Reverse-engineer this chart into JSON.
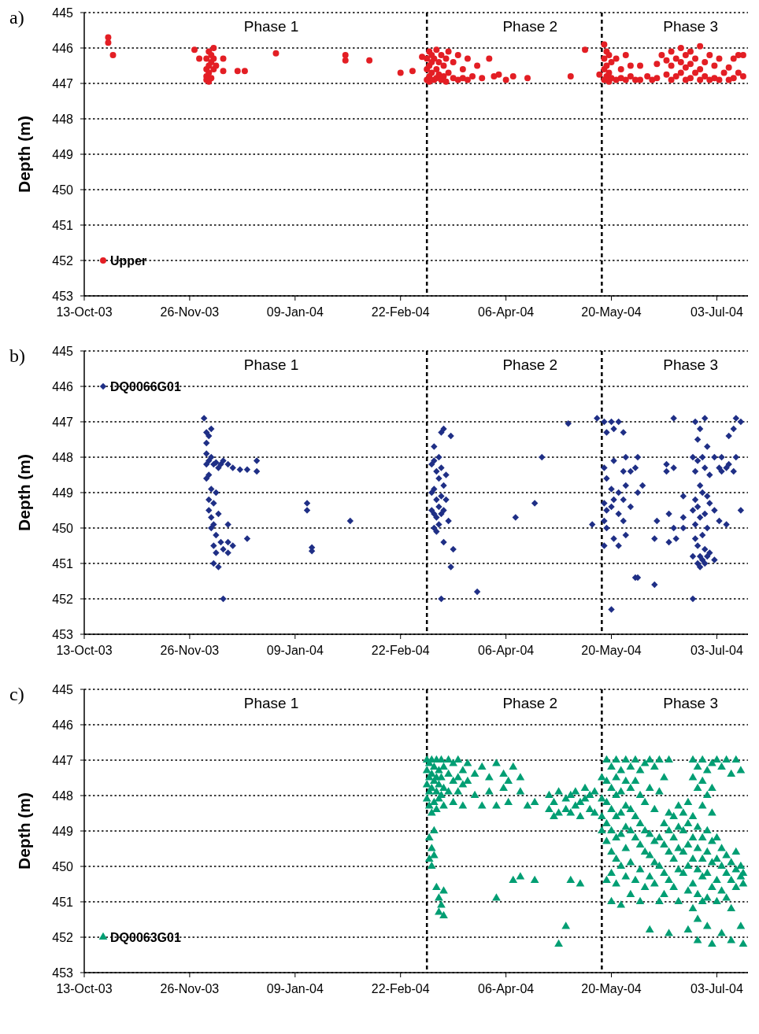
{
  "chart_data": [
    {
      "type": "scatter",
      "title": "a)",
      "ylabel": "Depth (m)",
      "ylim": [
        453,
        445
      ],
      "yticks": [
        445,
        446,
        447,
        448,
        449,
        450,
        451,
        452,
        453
      ],
      "xlim": [
        "2003-10-13",
        "2004-07-16"
      ],
      "xticks": [
        {
          "value": "2003-10-13",
          "label": "13-Oct-03"
        },
        {
          "value": "2003-11-26",
          "label": "26-Nov-03"
        },
        {
          "value": "2004-01-09",
          "label": "09-Jan-04"
        },
        {
          "value": "2004-02-22",
          "label": "22-Feb-04"
        },
        {
          "value": "2004-04-06",
          "label": "06-Apr-04"
        },
        {
          "value": "2004-05-20",
          "label": "20-May-04"
        },
        {
          "value": "2004-07-03",
          "label": "03-Jul-04"
        }
      ],
      "grid": "y",
      "legend": "bottom left",
      "marker": "circle",
      "ref_lines": [
        {
          "axis": "x",
          "value": "2004-03-04",
          "line_style": "dashed",
          "color": "#000000"
        },
        {
          "axis": "x",
          "value": "2004-05-16",
          "line_style": "dashed",
          "color": "#000000"
        }
      ],
      "annotations": [
        "Phase 1",
        "Phase 2",
        "Phase 3"
      ],
      "series": [
        {
          "name": "Upper",
          "color": "#e31e24",
          "x": [
            "2003-10-23",
            "2003-10-23",
            "2003-10-25",
            "2003-11-28",
            "2003-11-30",
            "2003-12-03",
            "2003-12-03",
            "2003-12-03",
            "2003-12-03",
            "2003-12-04",
            "2003-12-04",
            "2003-12-04",
            "2003-12-04",
            "2003-12-05",
            "2003-12-05",
            "2003-12-05",
            "2003-12-06",
            "2003-12-06",
            "2003-12-06",
            "2003-12-07",
            "2003-12-10",
            "2003-12-10",
            "2003-12-16",
            "2003-12-19",
            "2004-01-01",
            "2004-01-30",
            "2004-01-30",
            "2004-02-09",
            "2004-02-22",
            "2004-02-27",
            "2004-03-02",
            "2004-03-04",
            "2004-03-04",
            "2004-03-04",
            "2004-03-05",
            "2004-03-05",
            "2004-03-05",
            "2004-03-05",
            "2004-03-06",
            "2004-03-06",
            "2004-03-06",
            "2004-03-07",
            "2004-03-07",
            "2004-03-08",
            "2004-03-08",
            "2004-03-08",
            "2004-03-09",
            "2004-03-09",
            "2004-03-10",
            "2004-03-10",
            "2004-03-11",
            "2004-03-11",
            "2004-03-12",
            "2004-03-12",
            "2004-03-13",
            "2004-03-13",
            "2004-03-15",
            "2004-03-15",
            "2004-03-17",
            "2004-03-17",
            "2004-03-19",
            "2004-03-19",
            "2004-03-21",
            "2004-03-21",
            "2004-03-23",
            "2004-03-25",
            "2004-03-27",
            "2004-03-30",
            "2004-04-01",
            "2004-04-03",
            "2004-04-06",
            "2004-04-09",
            "2004-04-15",
            "2004-05-03",
            "2004-05-09",
            "2004-05-15",
            "2004-05-17",
            "2004-05-17",
            "2004-05-17",
            "2004-05-17",
            "2004-05-18",
            "2004-05-18",
            "2004-05-18",
            "2004-05-19",
            "2004-05-19",
            "2004-05-19",
            "2004-05-20",
            "2004-05-20",
            "2004-05-22",
            "2004-05-22",
            "2004-05-24",
            "2004-05-24",
            "2004-05-26",
            "2004-05-26",
            "2004-05-28",
            "2004-05-28",
            "2004-05-30",
            "2004-06-01",
            "2004-06-01",
            "2004-06-04",
            "2004-06-06",
            "2004-06-08",
            "2004-06-08",
            "2004-06-10",
            "2004-06-12",
            "2004-06-12",
            "2004-06-14",
            "2004-06-14",
            "2004-06-14",
            "2004-06-16",
            "2004-06-16",
            "2004-06-18",
            "2004-06-18",
            "2004-06-18",
            "2004-06-20",
            "2004-06-20",
            "2004-06-20",
            "2004-06-22",
            "2004-06-22",
            "2004-06-22",
            "2004-06-24",
            "2004-06-24",
            "2004-06-26",
            "2004-06-26",
            "2004-06-26",
            "2004-06-28",
            "2004-06-28",
            "2004-06-30",
            "2004-06-30",
            "2004-07-02",
            "2004-07-02",
            "2004-07-04",
            "2004-07-04",
            "2004-07-06",
            "2004-07-08",
            "2004-07-08",
            "2004-07-10",
            "2004-07-10",
            "2004-07-12",
            "2004-07-12",
            "2004-07-14",
            "2004-07-14"
          ],
          "values": [
            445.7,
            445.85,
            446.2,
            446.05,
            446.3,
            446.3,
            446.6,
            446.9,
            446.8,
            446.1,
            446.5,
            446.7,
            446.95,
            446.2,
            446.4,
            446.85,
            446.0,
            446.6,
            446.3,
            446.5,
            446.3,
            446.65,
            446.65,
            446.65,
            446.15,
            446.2,
            446.35,
            446.35,
            446.7,
            446.65,
            446.25,
            446.3,
            446.6,
            446.9,
            446.1,
            446.5,
            446.8,
            446.95,
            446.2,
            446.4,
            446.7,
            446.3,
            446.9,
            446.05,
            446.6,
            446.85,
            446.4,
            446.75,
            446.2,
            446.9,
            446.5,
            446.8,
            446.3,
            446.95,
            446.1,
            446.7,
            446.4,
            446.85,
            446.2,
            446.9,
            446.6,
            446.85,
            446.3,
            446.9,
            446.8,
            446.5,
            446.85,
            446.3,
            446.8,
            446.75,
            446.9,
            446.8,
            446.85,
            446.8,
            446.05,
            446.75,
            445.9,
            446.3,
            446.6,
            446.9,
            446.1,
            446.5,
            446.8,
            446.2,
            446.7,
            446.95,
            446.4,
            446.85,
            446.3,
            446.9,
            446.6,
            446.85,
            446.2,
            446.9,
            446.5,
            446.8,
            446.9,
            446.5,
            446.9,
            446.8,
            446.9,
            446.45,
            446.85,
            446.2,
            446.35,
            446.75,
            446.1,
            446.5,
            446.9,
            446.3,
            446.8,
            446.0,
            446.4,
            446.7,
            446.2,
            446.55,
            446.9,
            446.1,
            446.45,
            446.85,
            446.3,
            446.7,
            445.95,
            446.6,
            446.9,
            446.4,
            446.8,
            446.2,
            446.9,
            446.5,
            446.85,
            446.3,
            446.9,
            446.7,
            446.55,
            446.9,
            446.3,
            446.85,
            446.2,
            446.7,
            446.8,
            446.2
          ]
        }
      ]
    },
    {
      "type": "scatter",
      "title": "b)",
      "ylabel": "Depth (m)",
      "ylim": [
        453,
        445
      ],
      "yticks": [
        445,
        446,
        447,
        448,
        449,
        450,
        451,
        452,
        453
      ],
      "xlim": [
        "2003-10-13",
        "2004-07-16"
      ],
      "xticks": [
        {
          "value": "2003-10-13",
          "label": "13-Oct-03"
        },
        {
          "value": "2003-11-26",
          "label": "26-Nov-03"
        },
        {
          "value": "2004-01-09",
          "label": "09-Jan-04"
        },
        {
          "value": "2004-02-22",
          "label": "22-Feb-04"
        },
        {
          "value": "2004-04-06",
          "label": "06-Apr-04"
        },
        {
          "value": "2004-05-20",
          "label": "20-May-04"
        },
        {
          "value": "2004-07-03",
          "label": "03-Jul-04"
        }
      ],
      "grid": "y",
      "legend": "top left",
      "marker": "diamond",
      "ref_lines": [
        {
          "axis": "x",
          "value": "2004-03-04",
          "line_style": "dashed",
          "color": "#000000"
        },
        {
          "axis": "x",
          "value": "2004-05-16",
          "line_style": "dashed",
          "color": "#000000"
        }
      ],
      "annotations": [
        "Phase 1",
        "Phase 2",
        "Phase 3"
      ],
      "series": [
        {
          "name": "DQ0066G01",
          "color": "#1f2f86",
          "x": [
            "2003-12-02",
            "2003-12-03",
            "2003-12-03",
            "2003-12-03",
            "2003-12-03",
            "2003-12-03",
            "2003-12-04",
            "2003-12-04",
            "2003-12-04",
            "2003-12-04",
            "2003-12-04",
            "2003-12-05",
            "2003-12-05",
            "2003-12-05",
            "2003-12-05",
            "2003-12-05",
            "2003-12-06",
            "2003-12-06",
            "2003-12-06",
            "2003-12-06",
            "2003-12-06",
            "2003-12-07",
            "2003-12-07",
            "2003-12-07",
            "2003-12-07",
            "2003-12-08",
            "2003-12-08",
            "2003-12-08",
            "2003-12-09",
            "2003-12-09",
            "2003-12-10",
            "2003-12-10",
            "2003-12-10",
            "2003-12-12",
            "2003-12-12",
            "2003-12-12",
            "2003-12-12",
            "2003-12-14",
            "2003-12-14",
            "2003-12-17",
            "2003-12-20",
            "2003-12-20",
            "2003-12-24",
            "2003-12-24",
            "2004-01-14",
            "2004-01-14",
            "2004-01-16",
            "2004-01-16",
            "2004-02-01",
            "2004-03-06",
            "2004-03-06",
            "2004-03-06",
            "2004-03-07",
            "2004-03-07",
            "2004-03-07",
            "2004-03-07",
            "2004-03-07",
            "2004-03-08",
            "2004-03-08",
            "2004-03-08",
            "2004-03-08",
            "2004-03-09",
            "2004-03-09",
            "2004-03-09",
            "2004-03-09",
            "2004-03-10",
            "2004-03-10",
            "2004-03-10",
            "2004-03-10",
            "2004-03-10",
            "2004-03-11",
            "2004-03-11",
            "2004-03-11",
            "2004-03-11",
            "2004-03-12",
            "2004-03-12",
            "2004-03-13",
            "2004-03-14",
            "2004-03-14",
            "2004-03-15",
            "2004-03-25",
            "2004-04-10",
            "2004-04-18",
            "2004-04-21",
            "2004-05-02",
            "2004-05-12",
            "2004-05-14",
            "2004-05-17",
            "2004-05-17",
            "2004-05-17",
            "2004-05-17",
            "2004-05-17",
            "2004-05-18",
            "2004-05-18",
            "2004-05-18",
            "2004-05-18",
            "2004-05-20",
            "2004-05-20",
            "2004-05-20",
            "2004-05-20",
            "2004-05-21",
            "2004-05-21",
            "2004-05-21",
            "2004-05-21",
            "2004-05-23",
            "2004-05-23",
            "2004-05-23",
            "2004-05-23",
            "2004-05-25",
            "2004-05-25",
            "2004-05-25",
            "2004-05-25",
            "2004-05-26",
            "2004-05-26",
            "2004-05-26",
            "2004-05-28",
            "2004-05-28",
            "2004-05-30",
            "2004-05-30",
            "2004-05-31",
            "2004-05-31",
            "2004-05-31",
            "2004-06-02",
            "2004-06-07",
            "2004-06-07",
            "2004-06-08",
            "2004-06-12",
            "2004-06-12",
            "2004-06-13",
            "2004-06-13",
            "2004-06-15",
            "2004-06-15",
            "2004-06-15",
            "2004-06-16",
            "2004-06-19",
            "2004-06-19",
            "2004-06-19",
            "2004-06-23",
            "2004-06-23",
            "2004-06-23",
            "2004-06-23",
            "2004-06-24",
            "2004-06-24",
            "2004-06-24",
            "2004-06-24",
            "2004-06-24",
            "2004-06-25",
            "2004-06-25",
            "2004-06-25",
            "2004-06-25",
            "2004-06-25",
            "2004-06-26",
            "2004-06-26",
            "2004-06-26",
            "2004-06-26",
            "2004-06-26",
            "2004-06-27",
            "2004-06-27",
            "2004-06-27",
            "2004-06-27",
            "2004-06-28",
            "2004-06-28",
            "2004-06-28",
            "2004-06-28",
            "2004-06-28",
            "2004-06-29",
            "2004-06-29",
            "2004-06-29",
            "2004-06-29",
            "2004-06-30",
            "2004-06-30",
            "2004-06-30",
            "2004-07-02",
            "2004-07-02",
            "2004-07-02",
            "2004-07-04",
            "2004-07-04",
            "2004-07-05",
            "2004-07-05",
            "2004-07-07",
            "2004-07-07",
            "2004-07-08",
            "2004-07-08",
            "2004-07-10",
            "2004-07-10",
            "2004-07-11",
            "2004-07-11",
            "2004-07-13",
            "2004-07-13"
          ],
          "values": [
            446.9,
            447.3,
            447.6,
            447.9,
            448.2,
            448.6,
            447.4,
            448.1,
            448.5,
            449.2,
            449.5,
            447.2,
            448.0,
            448.9,
            449.7,
            450.0,
            448.2,
            449.3,
            449.9,
            450.5,
            451.0,
            448.15,
            449.0,
            450.2,
            450.7,
            448.3,
            449.6,
            451.1,
            448.2,
            450.4,
            448.1,
            452.0,
            450.6,
            448.2,
            449.9,
            450.4,
            450.7,
            448.3,
            450.5,
            448.35,
            448.35,
            450.3,
            448.1,
            448.4,
            449.3,
            449.5,
            450.55,
            450.65,
            449.8,
            448.2,
            449.0,
            449.5,
            447.7,
            448.1,
            448.9,
            449.6,
            450.0,
            448.4,
            449.2,
            449.7,
            450.1,
            448.0,
            448.6,
            449.4,
            449.9,
            447.3,
            448.3,
            449.1,
            449.6,
            452.0,
            447.2,
            448.8,
            449.5,
            450.4,
            448.5,
            449.2,
            449.8,
            447.4,
            451.1,
            450.6,
            451.8,
            449.7,
            449.3,
            448.0,
            447.05,
            449.9,
            446.9,
            447.0,
            448.3,
            449.3,
            449.8,
            450.5,
            447.3,
            448.6,
            449.5,
            450.0,
            447.0,
            448.9,
            449.4,
            452.3,
            447.2,
            448.1,
            449.2,
            450.3,
            447.0,
            449.0,
            449.6,
            450.5,
            447.3,
            448.4,
            449.2,
            449.8,
            448.0,
            448.8,
            450.2,
            448.4,
            449.4,
            448.3,
            451.4,
            448.0,
            449.0,
            451.4,
            448.8,
            451.6,
            450.3,
            449.8,
            448.2,
            448.4,
            449.6,
            450.4,
            446.9,
            448.3,
            450.0,
            450.3,
            449.1,
            449.7,
            450.0,
            448.0,
            449.5,
            450.8,
            452.0,
            447.0,
            448.4,
            449.2,
            449.9,
            450.3,
            447.5,
            448.1,
            449.4,
            450.5,
            451.0,
            447.2,
            448.8,
            449.7,
            450.8,
            451.1,
            448.0,
            449.0,
            450.2,
            450.9,
            446.9,
            448.3,
            449.6,
            450.6,
            451.0,
            447.7,
            449.1,
            450.0,
            450.8,
            448.5,
            449.3,
            450.7,
            448.0,
            449.5,
            450.9,
            448.3,
            449.8,
            448.0,
            448.4,
            448.3,
            449.9,
            447.4,
            448.2,
            447.2,
            448.4,
            446.9,
            448.0,
            447.0,
            449.5
          ]
        }
      ]
    },
    {
      "type": "scatter",
      "title": "c)",
      "ylabel": "Depth (m)",
      "ylim": [
        453,
        445
      ],
      "yticks": [
        445,
        446,
        447,
        448,
        449,
        450,
        451,
        452,
        453
      ],
      "xlim": [
        "2003-10-13",
        "2004-07-16"
      ],
      "xticks": [
        {
          "value": "2003-10-13",
          "label": "13-Oct-03"
        },
        {
          "value": "2003-11-26",
          "label": "26-Nov-03"
        },
        {
          "value": "2004-01-09",
          "label": "09-Jan-04"
        },
        {
          "value": "2004-02-22",
          "label": "22-Feb-04"
        },
        {
          "value": "2004-04-06",
          "label": "06-Apr-04"
        },
        {
          "value": "2004-05-20",
          "label": "20-May-04"
        },
        {
          "value": "2004-07-03",
          "label": "03-Jul-04"
        }
      ],
      "grid": "y",
      "legend": "bottom left",
      "marker": "triangle",
      "ref_lines": [
        {
          "axis": "x",
          "value": "2004-03-04",
          "line_style": "dashed",
          "color": "#000000"
        },
        {
          "axis": "x",
          "value": "2004-05-16",
          "line_style": "dashed",
          "color": "#000000"
        }
      ],
      "annotations": [
        "Phase 1",
        "Phase 2",
        "Phase 3"
      ],
      "series": [
        {
          "name": "DQ0063G01",
          "color": "#009e73",
          "x": [
            "2004-03-04",
            "2004-03-04",
            "2004-03-04",
            "2004-03-04",
            "2004-03-05",
            "2004-03-05",
            "2004-03-05",
            "2004-03-05",
            "2004-03-05",
            "2004-03-05",
            "2004-03-06",
            "2004-03-06",
            "2004-03-06",
            "2004-03-06",
            "2004-03-06",
            "2004-03-06",
            "2004-03-07",
            "2004-03-07",
            "2004-03-07",
            "2004-03-07",
            "2004-03-07",
            "2004-03-08",
            "2004-03-08",
            "2004-03-08",
            "2004-03-08",
            "2004-03-08",
            "2004-03-09",
            "2004-03-09",
            "2004-03-09",
            "2004-03-09",
            "2004-03-09",
            "2004-03-10",
            "2004-03-10",
            "2004-03-10",
            "2004-03-10",
            "2004-03-11",
            "2004-03-11",
            "2004-03-11",
            "2004-03-11",
            "2004-03-11",
            "2004-03-13",
            "2004-03-13",
            "2004-03-13",
            "2004-03-15",
            "2004-03-15",
            "2004-03-15",
            "2004-03-17",
            "2004-03-17",
            "2004-03-17",
            "2004-03-19",
            "2004-03-19",
            "2004-03-19",
            "2004-03-21",
            "2004-03-21",
            "2004-03-24",
            "2004-03-24",
            "2004-03-27",
            "2004-03-27",
            "2004-03-30",
            "2004-03-30",
            "2004-04-02",
            "2004-04-02",
            "2004-04-02",
            "2004-04-05",
            "2004-04-05",
            "2004-04-07",
            "2004-04-07",
            "2004-04-09",
            "2004-04-09",
            "2004-04-12",
            "2004-04-12",
            "2004-04-12",
            "2004-04-15",
            "2004-04-18",
            "2004-04-18",
            "2004-04-24",
            "2004-04-24",
            "2004-04-26",
            "2004-04-26",
            "2004-04-28",
            "2004-04-28",
            "2004-04-28",
            "2004-05-01",
            "2004-05-01",
            "2004-05-01",
            "2004-05-03",
            "2004-05-03",
            "2004-05-03",
            "2004-05-05",
            "2004-05-05",
            "2004-05-07",
            "2004-05-07",
            "2004-05-07",
            "2004-05-09",
            "2004-05-09",
            "2004-05-11",
            "2004-05-11",
            "2004-05-13",
            "2004-05-13",
            "2004-05-16",
            "2004-05-16",
            "2004-05-16",
            "2004-05-16",
            "2004-05-18",
            "2004-05-18",
            "2004-05-18",
            "2004-05-18",
            "2004-05-18",
            "2004-05-18",
            "2004-05-20",
            "2004-05-20",
            "2004-05-20",
            "2004-05-20",
            "2004-05-20",
            "2004-05-20",
            "2004-05-20",
            "2004-05-22",
            "2004-05-22",
            "2004-05-22",
            "2004-05-22",
            "2004-05-22",
            "2004-05-22",
            "2004-05-22",
            "2004-05-24",
            "2004-05-24",
            "2004-05-24",
            "2004-05-24",
            "2004-05-24",
            "2004-05-24",
            "2004-05-26",
            "2004-05-26",
            "2004-05-26",
            "2004-05-26",
            "2004-05-26",
            "2004-05-26",
            "2004-05-28",
            "2004-05-28",
            "2004-05-28",
            "2004-05-28",
            "2004-05-28",
            "2004-05-28",
            "2004-05-30",
            "2004-05-30",
            "2004-05-30",
            "2004-05-30",
            "2004-05-30",
            "2004-06-01",
            "2004-06-01",
            "2004-06-01",
            "2004-06-01",
            "2004-06-01",
            "2004-06-01",
            "2004-06-03",
            "2004-06-03",
            "2004-06-03",
            "2004-06-03",
            "2004-06-03",
            "2004-06-05",
            "2004-06-05",
            "2004-06-05",
            "2004-06-05",
            "2004-06-05",
            "2004-06-05",
            "2004-06-07",
            "2004-06-07",
            "2004-06-07",
            "2004-06-07",
            "2004-06-07",
            "2004-06-09",
            "2004-06-09",
            "2004-06-09",
            "2004-06-09",
            "2004-06-09",
            "2004-06-11",
            "2004-06-11",
            "2004-06-11",
            "2004-06-11",
            "2004-06-11",
            "2004-06-13",
            "2004-06-13",
            "2004-06-13",
            "2004-06-13",
            "2004-06-13",
            "2004-06-13",
            "2004-06-15",
            "2004-06-15",
            "2004-06-15",
            "2004-06-15",
            "2004-06-17",
            "2004-06-17",
            "2004-06-17",
            "2004-06-17",
            "2004-06-17",
            "2004-06-19",
            "2004-06-19",
            "2004-06-19",
            "2004-06-19",
            "2004-06-21",
            "2004-06-21",
            "2004-06-21",
            "2004-06-21",
            "2004-06-21",
            "2004-06-21",
            "2004-06-23",
            "2004-06-23",
            "2004-06-23",
            "2004-06-23",
            "2004-06-23",
            "2004-06-23",
            "2004-06-23",
            "2004-06-25",
            "2004-06-25",
            "2004-06-25",
            "2004-06-25",
            "2004-06-25",
            "2004-06-25",
            "2004-06-25",
            "2004-06-25",
            "2004-06-27",
            "2004-06-27",
            "2004-06-27",
            "2004-06-27",
            "2004-06-27",
            "2004-06-27",
            "2004-06-27",
            "2004-06-29",
            "2004-06-29",
            "2004-06-29",
            "2004-06-29",
            "2004-06-29",
            "2004-06-29",
            "2004-06-29",
            "2004-07-01",
            "2004-07-01",
            "2004-07-01",
            "2004-07-01",
            "2004-07-01",
            "2004-07-01",
            "2004-07-01",
            "2004-07-03",
            "2004-07-03",
            "2004-07-03",
            "2004-07-03",
            "2004-07-03",
            "2004-07-05",
            "2004-07-05",
            "2004-07-05",
            "2004-07-05",
            "2004-07-05",
            "2004-07-07",
            "2004-07-07",
            "2004-07-07",
            "2004-07-07",
            "2004-07-09",
            "2004-07-09",
            "2004-07-09",
            "2004-07-09",
            "2004-07-09",
            "2004-07-11",
            "2004-07-11",
            "2004-07-11",
            "2004-07-11",
            "2004-07-13",
            "2004-07-13",
            "2004-07-13",
            "2004-07-13",
            "2004-07-14",
            "2004-07-14",
            "2004-07-14"
          ],
          "values": [
            447.0,
            447.3,
            447.7,
            448.1,
            447.1,
            447.5,
            447.9,
            448.3,
            449.2,
            449.8,
            447.0,
            447.4,
            447.8,
            448.5,
            449.5,
            450.0,
            447.2,
            447.6,
            448.2,
            449.0,
            449.7,
            447.0,
            447.5,
            447.9,
            448.4,
            450.6,
            447.3,
            447.7,
            448.1,
            450.9,
            451.3,
            447.0,
            447.5,
            448.0,
            451.1,
            447.2,
            447.8,
            448.3,
            450.7,
            451.4,
            447.0,
            447.4,
            447.9,
            447.1,
            447.6,
            448.2,
            447.0,
            447.5,
            447.9,
            447.3,
            447.7,
            448.3,
            447.1,
            447.6,
            447.4,
            448.0,
            447.2,
            448.3,
            447.5,
            447.9,
            447.1,
            448.3,
            450.9,
            447.4,
            447.8,
            447.6,
            448.2,
            447.2,
            450.4,
            447.5,
            447.9,
            450.3,
            448.3,
            448.2,
            450.4,
            448.0,
            448.4,
            448.2,
            448.6,
            447.9,
            448.5,
            452.2,
            448.1,
            448.4,
            451.7,
            448.0,
            448.5,
            450.4,
            447.9,
            448.3,
            448.2,
            448.6,
            450.5,
            447.8,
            448.1,
            448.0,
            448.4,
            447.9,
            448.5,
            447.5,
            448.1,
            448.6,
            449.0,
            447.0,
            447.6,
            448.2,
            448.8,
            449.3,
            450.4,
            447.2,
            447.8,
            448.4,
            449.0,
            449.6,
            450.2,
            451.0,
            447.0,
            447.5,
            448.0,
            448.6,
            449.2,
            449.8,
            450.5,
            447.3,
            447.9,
            448.5,
            449.1,
            450.0,
            451.1,
            447.0,
            447.6,
            448.3,
            448.9,
            449.5,
            450.3,
            447.2,
            447.8,
            448.4,
            449.0,
            449.9,
            450.8,
            447.0,
            447.6,
            448.6,
            449.2,
            450.4,
            447.3,
            448.0,
            448.8,
            449.4,
            450.1,
            451.0,
            447.1,
            448.2,
            449.0,
            449.6,
            450.6,
            447.0,
            447.8,
            449.1,
            449.7,
            450.3,
            451.8,
            447.2,
            448.4,
            449.3,
            449.9,
            450.5,
            447.0,
            447.9,
            449.2,
            450.0,
            451.0,
            447.5,
            448.8,
            449.4,
            450.2,
            450.8,
            447.0,
            448.5,
            449.0,
            449.6,
            450.4,
            451.9,
            448.6,
            449.2,
            449.8,
            450.6,
            448.3,
            448.9,
            449.5,
            450.1,
            451.0,
            448.5,
            449.0,
            449.6,
            450.2,
            448.2,
            448.8,
            449.4,
            450.0,
            450.7,
            451.8,
            447.0,
            447.5,
            448.6,
            449.2,
            449.8,
            450.5,
            451.2,
            447.2,
            447.8,
            448.9,
            449.5,
            450.1,
            450.8,
            451.5,
            452.1,
            447.0,
            447.6,
            448.3,
            449.2,
            449.8,
            450.3,
            451.0,
            447.3,
            448.0,
            449.0,
            449.6,
            450.2,
            450.9,
            451.7,
            447.1,
            447.8,
            448.5,
            449.3,
            449.9,
            450.6,
            452.2,
            447.0,
            449.2,
            449.8,
            450.4,
            451.0,
            447.2,
            449.5,
            450.0,
            450.7,
            451.9,
            447.0,
            449.7,
            450.2,
            450.9,
            447.4,
            449.9,
            450.4,
            451.2,
            452.1,
            447.0,
            449.6,
            450.1,
            450.6,
            447.3,
            450.0,
            450.3,
            451.7,
            450.2,
            450.5,
            452.2
          ]
        }
      ]
    }
  ]
}
